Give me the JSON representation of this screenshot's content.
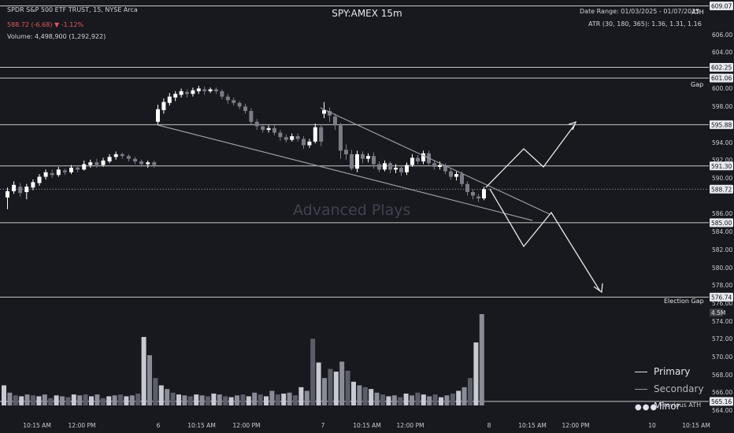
{
  "header": {
    "symbol_line": "SPDR S&P 500 ETF TRUST, 15, NYSE Arca",
    "price_change": "588.72 (-6.68) ▼ -1.12%",
    "volume": "Volume: 4,498,900 (1,292,922)",
    "title": "SPY:AMEX 15m",
    "date_range": "Date Range: 01/03/2025 - 01/07/2025",
    "atr": "ATR (30, 180, 365): 1.36, 1.31, 1.16"
  },
  "watermark": "Advanced Plays",
  "colors": {
    "background": "#18191e",
    "up_candle": "#ffffff",
    "down_candle": "#7a7d87",
    "negative_text": "#e05a5a",
    "level_line": "#c8c8c8"
  },
  "price_axis": {
    "ticks": [
      "606.00",
      "604.00",
      "600.00",
      "598.00",
      "594.00",
      "592.00",
      "590.00",
      "586.00",
      "584.00",
      "582.00",
      "580.00",
      "578.00",
      "576.00",
      "574.00",
      "572.00",
      "570.00",
      "568.00",
      "566.00",
      "564.00"
    ],
    "badges": [
      "609.07",
      "602.25",
      "601.06",
      "595.88",
      "591.30",
      "588.72",
      "585.00",
      "576.74",
      "565.16"
    ],
    "volume_badge": "4.5M"
  },
  "level_labels": {
    "ath": "ATH",
    "gap": "Gap",
    "election_gap": "Election Gap",
    "previous_ath": "Previous ATH"
  },
  "time_axis": [
    "10:15 AM",
    "12:00 PM",
    "6",
    "10:15 AM",
    "12:00 PM",
    "7",
    "10:15 AM",
    "12:00 PM",
    "8",
    "10:15 AM",
    "12:00 PM",
    "10",
    "10:15 AM"
  ],
  "legend": [
    {
      "label": "Primary",
      "style": "solid"
    },
    {
      "label": "Secondary",
      "style": "solid"
    },
    {
      "label": "Minor",
      "style": "dotted"
    }
  ],
  "chart_data": {
    "type": "candlestick",
    "y_range": [
      563,
      610
    ],
    "levels": [
      609.07,
      602.25,
      601.06,
      595.88,
      591.3,
      585.0,
      576.74,
      565.16
    ],
    "current_price": 588.72,
    "candles": [
      [
        587.8,
        588.5,
        586.5,
        588.9
      ],
      [
        588.5,
        589.2,
        588.2,
        589.6
      ],
      [
        589.0,
        588.3,
        587.9,
        589.4
      ],
      [
        588.4,
        589.0,
        587.6,
        589.3
      ],
      [
        588.9,
        589.5,
        588.6,
        589.8
      ],
      [
        589.4,
        590.1,
        589.1,
        590.4
      ],
      [
        590.1,
        590.6,
        589.8,
        590.9
      ],
      [
        590.5,
        590.3,
        590.0,
        590.9
      ],
      [
        590.3,
        590.9,
        590.1,
        591.2
      ],
      [
        590.8,
        590.6,
        590.3,
        591.0
      ],
      [
        590.6,
        591.1,
        590.4,
        591.4
      ],
      [
        591.1,
        590.9,
        590.6,
        591.3
      ],
      [
        590.9,
        591.5,
        590.8,
        591.9
      ],
      [
        591.4,
        591.7,
        591.1,
        592.0
      ],
      [
        591.7,
        591.4,
        591.1,
        592.1
      ],
      [
        591.4,
        591.9,
        591.2,
        592.2
      ],
      [
        591.8,
        592.3,
        591.6,
        592.6
      ],
      [
        592.3,
        592.6,
        592.0,
        592.9
      ],
      [
        592.6,
        592.4,
        592.1,
        592.8
      ],
      [
        592.4,
        592.1,
        591.8,
        592.6
      ],
      [
        592.1,
        591.8,
        591.5,
        592.3
      ],
      [
        591.8,
        591.5,
        591.2,
        592.0
      ],
      [
        591.5,
        591.7,
        591.1,
        591.9
      ],
      [
        591.7,
        591.4,
        591.1,
        591.9
      ],
      [
        596.2,
        597.6,
        595.9,
        598.1
      ],
      [
        597.5,
        598.4,
        597.1,
        598.8
      ],
      [
        598.3,
        599.0,
        598.0,
        599.4
      ],
      [
        598.9,
        599.3,
        598.5,
        599.6
      ],
      [
        599.2,
        599.6,
        598.9,
        599.9
      ],
      [
        599.5,
        599.3,
        598.9,
        599.8
      ],
      [
        599.3,
        599.7,
        599.0,
        600.0
      ],
      [
        599.6,
        599.9,
        599.3,
        600.2
      ],
      [
        599.8,
        599.6,
        599.2,
        600.1
      ],
      [
        599.6,
        599.8,
        599.4,
        600.0
      ],
      [
        599.8,
        599.6,
        599.3,
        600.0
      ],
      [
        599.6,
        599.0,
        598.7,
        599.8
      ],
      [
        599.0,
        598.6,
        598.2,
        599.3
      ],
      [
        598.6,
        598.3,
        598.0,
        598.9
      ],
      [
        598.3,
        597.9,
        597.6,
        598.5
      ],
      [
        597.9,
        597.4,
        597.1,
        598.2
      ],
      [
        597.4,
        596.2,
        595.9,
        597.7
      ],
      [
        596.2,
        595.7,
        595.3,
        596.5
      ],
      [
        595.7,
        595.3,
        595.0,
        596.0
      ],
      [
        595.3,
        595.5,
        595.0,
        595.8
      ],
      [
        595.5,
        595.0,
        594.7,
        595.8
      ],
      [
        595.0,
        594.5,
        594.1,
        595.3
      ],
      [
        594.5,
        594.2,
        593.9,
        594.8
      ],
      [
        594.2,
        594.6,
        594.0,
        594.9
      ],
      [
        594.6,
        594.3,
        594.0,
        594.9
      ],
      [
        594.3,
        593.6,
        593.2,
        594.6
      ],
      [
        593.6,
        594.0,
        593.3,
        594.3
      ],
      [
        594.0,
        595.6,
        593.8,
        596.0
      ],
      [
        595.6,
        594.0,
        593.5,
        595.9
      ],
      [
        597.1,
        597.5,
        596.6,
        598.4
      ],
      [
        597.4,
        596.9,
        596.2,
        597.8
      ],
      [
        596.8,
        595.8,
        595.3,
        597.1
      ],
      [
        595.8,
        593.0,
        592.1,
        596.1
      ],
      [
        593.1,
        592.6,
        592.0,
        593.7
      ],
      [
        592.6,
        591.0,
        590.8,
        593.1
      ],
      [
        591.0,
        592.6,
        590.6,
        593.0
      ],
      [
        592.6,
        592.1,
        591.6,
        592.9
      ],
      [
        592.1,
        592.4,
        591.7,
        592.7
      ],
      [
        592.4,
        591.5,
        591.0,
        592.8
      ],
      [
        591.5,
        590.9,
        590.6,
        591.8
      ],
      [
        590.9,
        591.6,
        590.7,
        591.9
      ],
      [
        591.6,
        590.9,
        590.5,
        591.8
      ],
      [
        590.9,
        591.1,
        590.5,
        591.5
      ],
      [
        591.1,
        590.6,
        590.2,
        591.4
      ],
      [
        590.6,
        591.4,
        590.3,
        591.7
      ],
      [
        591.4,
        592.2,
        591.2,
        592.6
      ],
      [
        592.2,
        591.8,
        591.5,
        592.5
      ],
      [
        591.8,
        592.7,
        591.5,
        593.0
      ],
      [
        592.7,
        591.6,
        591.3,
        593.0
      ],
      [
        591.6,
        591.2,
        590.9,
        591.9
      ],
      [
        591.2,
        591.4,
        590.9,
        591.8
      ],
      [
        591.4,
        590.7,
        590.4,
        591.6
      ],
      [
        590.7,
        590.1,
        589.8,
        591.0
      ],
      [
        590.1,
        590.4,
        589.7,
        590.7
      ],
      [
        590.4,
        589.3,
        589.0,
        590.7
      ],
      [
        589.3,
        588.4,
        588.0,
        589.6
      ],
      [
        588.4,
        588.0,
        587.6,
        588.7
      ],
      [
        587.9,
        587.7,
        587.3,
        588.2
      ],
      [
        587.7,
        588.72,
        587.5,
        589.0
      ]
    ],
    "volume_scale_top": "4.5M",
    "volume": [
      0.22,
      0.14,
      0.11,
      0.1,
      0.12,
      0.11,
      0.1,
      0.12,
      0.08,
      0.11,
      0.1,
      0.09,
      0.12,
      0.11,
      0.12,
      0.1,
      0.12,
      0.08,
      0.1,
      0.11,
      0.12,
      0.1,
      0.11,
      0.13,
      0.75,
      0.55,
      0.3,
      0.22,
      0.18,
      0.14,
      0.12,
      0.11,
      0.1,
      0.12,
      0.11,
      0.1,
      0.13,
      0.12,
      0.1,
      0.09,
      0.11,
      0.12,
      0.1,
      0.14,
      0.12,
      0.1,
      0.16,
      0.12,
      0.13,
      0.14,
      0.11,
      0.2,
      0.16,
      0.73,
      0.47,
      0.3,
      0.4,
      0.37,
      0.48,
      0.38,
      0.26,
      0.22,
      0.2,
      0.18,
      0.14,
      0.12,
      0.1,
      0.11,
      0.09,
      0.13,
      0.11,
      0.14,
      0.12,
      0.1,
      0.12,
      0.09,
      0.11,
      0.13,
      0.16,
      0.2,
      0.3,
      0.69,
      1.0
    ]
  }
}
